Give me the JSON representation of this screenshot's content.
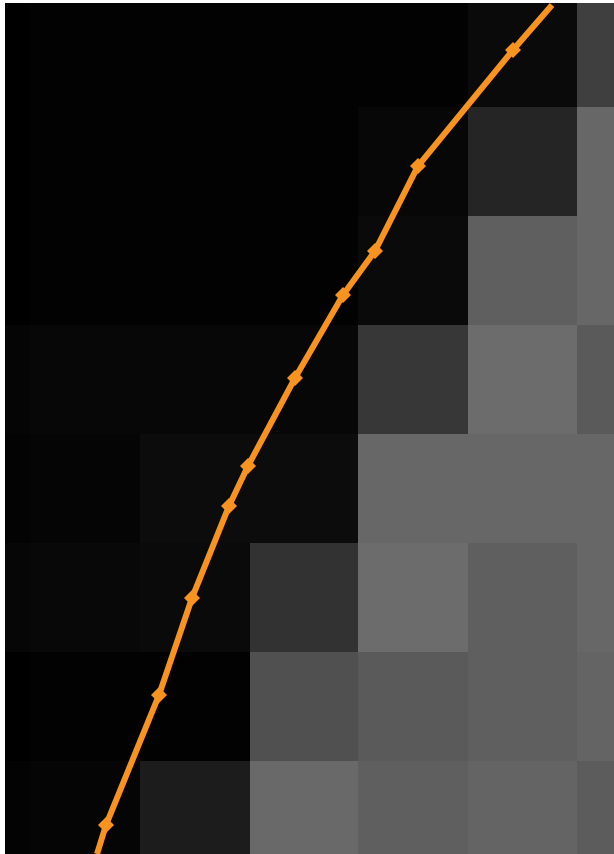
{
  "colors": {
    "background": "#ffffff",
    "polyline": "#F7931E",
    "markers": "#F7931E"
  },
  "pixel_grid": {
    "columns": 6,
    "rows": 8,
    "gray_levels": [
      [
        2,
        2,
        2,
        2,
        10,
        63
      ],
      [
        2,
        2,
        2,
        7,
        37,
        103
      ],
      [
        2,
        2,
        2,
        10,
        95,
        103
      ],
      [
        7,
        7,
        7,
        55,
        108,
        90
      ],
      [
        5,
        12,
        12,
        103,
        103,
        103
      ],
      [
        8,
        10,
        50,
        108,
        95,
        103
      ],
      [
        2,
        2,
        80,
        90,
        95,
        100
      ],
      [
        5,
        28,
        105,
        95,
        100,
        92
      ]
    ]
  },
  "trace": {
    "marker_shape": "diamond",
    "points": [
      [
        552,
        5
      ],
      [
        513,
        50
      ],
      [
        418,
        166
      ],
      [
        375,
        251
      ],
      [
        343,
        295
      ],
      [
        295,
        378
      ],
      [
        248,
        466
      ],
      [
        229,
        506
      ],
      [
        192,
        598
      ],
      [
        159,
        695
      ],
      [
        106,
        825
      ],
      [
        97,
        854
      ]
    ],
    "marker_indices": [
      1,
      2,
      3,
      4,
      5,
      6,
      7,
      8,
      9,
      10
    ]
  }
}
